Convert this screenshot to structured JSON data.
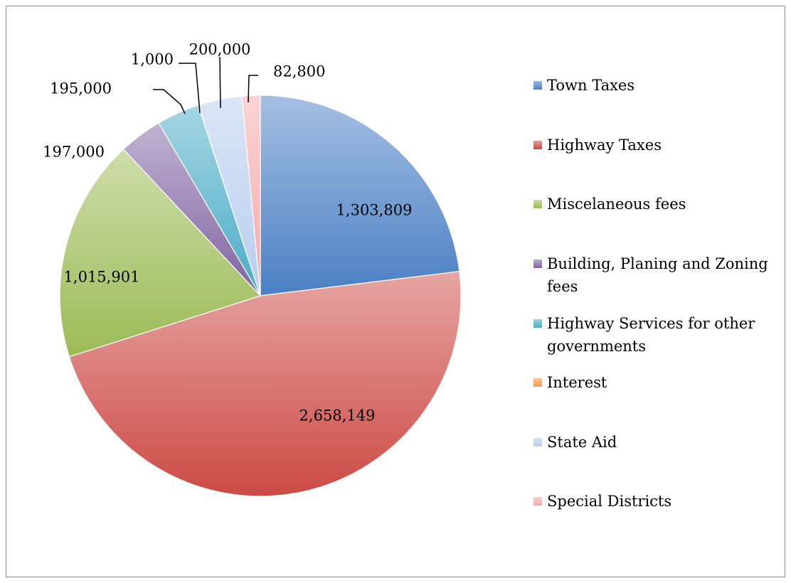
{
  "chart_data": {
    "type": "pie",
    "title": "",
    "categories": [
      "Town Taxes",
      "Highway Taxes",
      "Miscelaneous fees",
      "Building, Planing and Zoning fees",
      "Highway Services for other governments",
      "Interest",
      "State Aid",
      "Special Districts"
    ],
    "values": [
      1303809,
      2658149,
      1015901,
      197000,
      195000,
      1000,
      200000,
      82800
    ],
    "data_labels": [
      "1,303,809",
      "2,658,149",
      "1,015,901",
      "197,000",
      "195,000",
      "1,000",
      "200,000",
      "82,800"
    ],
    "colors": [
      "#4a7fc4",
      "#cc4a45",
      "#9bbb55",
      "#8064a2",
      "#4aacc6",
      "#f79646",
      "#b7cdee",
      "#f3a9a9"
    ],
    "legend_position": "right",
    "start_angle": "12 o'clock",
    "direction": "clockwise"
  }
}
